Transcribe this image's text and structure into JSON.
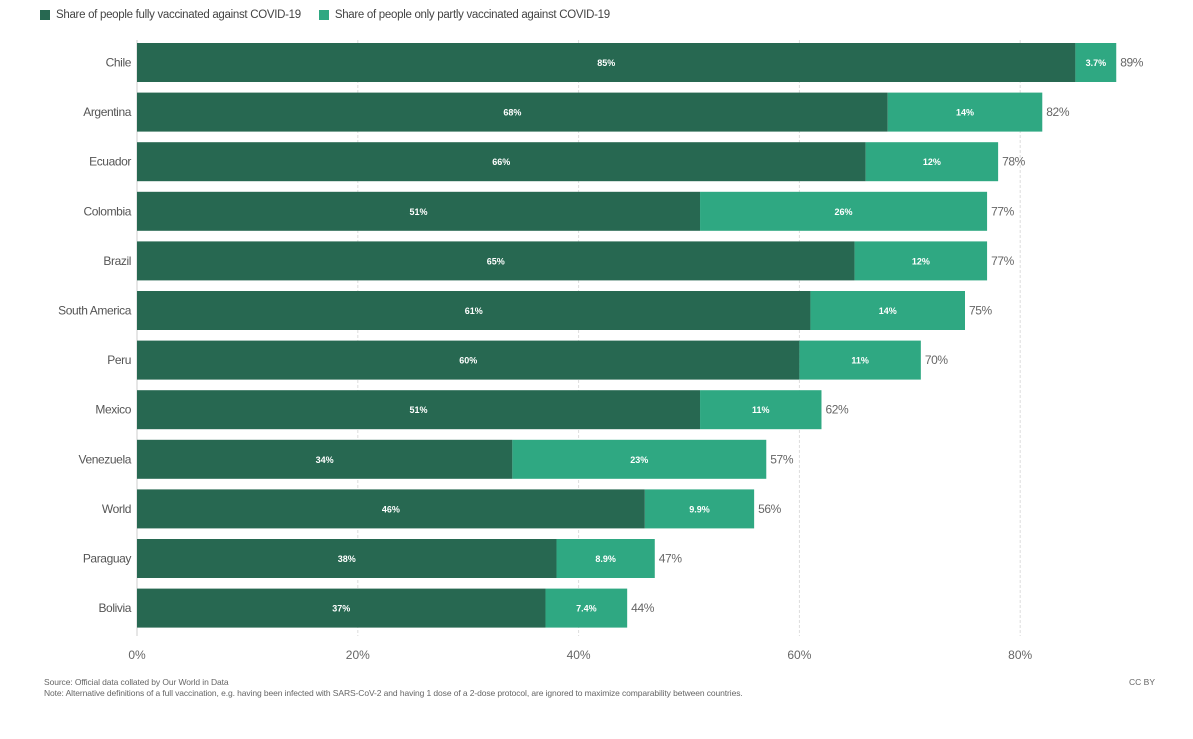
{
  "chart_data": {
    "type": "bar",
    "orientation": "horizontal",
    "stacked": true,
    "title": "",
    "xlabel": "",
    "ylabel": "",
    "xlim": [
      0,
      89
    ],
    "xticks": [
      0,
      20,
      40,
      60,
      80
    ],
    "xtick_labels": [
      "0%",
      "20%",
      "40%",
      "60%",
      "80%"
    ],
    "grid": true,
    "legend_position": "top-left",
    "categories": [
      "Chile",
      "Argentina",
      "Ecuador",
      "Colombia",
      "Brazil",
      "South America",
      "Peru",
      "Mexico",
      "Venezuela",
      "World",
      "Paraguay",
      "Bolivia"
    ],
    "series": [
      {
        "name": "Share of people fully vaccinated against COVID-19",
        "color": "#276851",
        "values": [
          85,
          68,
          66,
          51,
          65,
          61,
          60,
          51,
          34,
          46,
          38,
          37
        ],
        "labels": [
          "85%",
          "68%",
          "66%",
          "51%",
          "65%",
          "61%",
          "60%",
          "51%",
          "34%",
          "46%",
          "38%",
          "37%"
        ]
      },
      {
        "name": "Share of people only partly vaccinated against COVID-19",
        "color": "#2fa882",
        "values": [
          3.7,
          14,
          12,
          26,
          12,
          14,
          11,
          11,
          23,
          9.9,
          8.9,
          7.4
        ],
        "labels": [
          "3.7%",
          "14%",
          "12%",
          "26%",
          "12%",
          "14%",
          "11%",
          "11%",
          "23%",
          "9.9%",
          "8.9%",
          "7.4%"
        ]
      }
    ],
    "totals": [
      "89%",
      "82%",
      "78%",
      "77%",
      "77%",
      "75%",
      "70%",
      "62%",
      "57%",
      "56%",
      "47%",
      "44%"
    ]
  },
  "legend": {
    "items": [
      {
        "label": "Share of people fully vaccinated against COVID-19",
        "color": "#276851"
      },
      {
        "label": "Share of people only partly vaccinated against COVID-19",
        "color": "#2fa882"
      }
    ]
  },
  "footer": {
    "source": "Source: Official data collated by Our World in Data",
    "note": "Note: Alternative definitions of a full vaccination, e.g. having been infected with SARS-CoV-2 and having 1 dose of a 2-dose protocol, are ignored to maximize comparability between countries.",
    "license": "CC BY"
  }
}
